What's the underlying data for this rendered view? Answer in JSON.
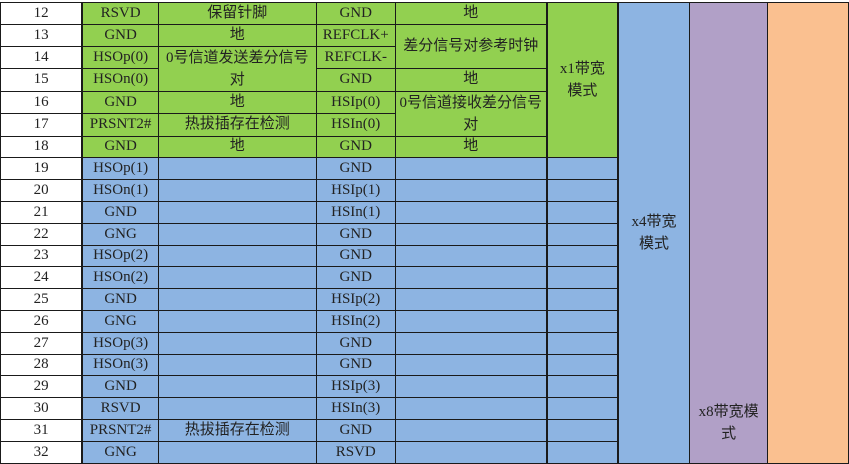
{
  "colors": {
    "green": "#92d050",
    "blue": "#8db4e2",
    "purple": "#b1a0c7",
    "orange": "#fac090"
  },
  "rows": [
    {
      "pin": "12",
      "signal_a": "RSVD",
      "desc_a": "保留针脚",
      "signal_b": "GND",
      "desc_b": "地"
    },
    {
      "pin": "13",
      "signal_a": "GND",
      "desc_a": "地",
      "signal_b": "REFCLK+",
      "desc_b": "差分信号对参考时钟"
    },
    {
      "pin": "14",
      "signal_a": "HSOp(0)",
      "desc_a": "0号信道发送差分信号对",
      "signal_b": "REFCLK-"
    },
    {
      "pin": "15",
      "signal_a": "HSOn(0)",
      "signal_b": "GND",
      "desc_b": "地"
    },
    {
      "pin": "16",
      "signal_a": "GND",
      "desc_a": "地",
      "signal_b": "HSIp(0)",
      "desc_b": "0号信道接收差分信号对"
    },
    {
      "pin": "17",
      "signal_a": "PRSNT2#",
      "desc_a": "热拔插存在检测",
      "signal_b": "HSIn(0)"
    },
    {
      "pin": "18",
      "signal_a": "GND",
      "desc_a": "地",
      "signal_b": "GND",
      "desc_b": "地"
    },
    {
      "pin": "19",
      "signal_a": "HSOp(1)",
      "desc_a": "",
      "signal_b": "GND",
      "desc_b": ""
    },
    {
      "pin": "20",
      "signal_a": "HSOn(1)",
      "desc_a": "",
      "signal_b": "HSIp(1)",
      "desc_b": ""
    },
    {
      "pin": "21",
      "signal_a": "GND",
      "desc_a": "",
      "signal_b": "HSIn(1)",
      "desc_b": ""
    },
    {
      "pin": "22",
      "signal_a": "GNG",
      "desc_a": "",
      "signal_b": "GND",
      "desc_b": ""
    },
    {
      "pin": "23",
      "signal_a": "HSOp(2)",
      "desc_a": "",
      "signal_b": "GND",
      "desc_b": ""
    },
    {
      "pin": "24",
      "signal_a": "HSOn(2)",
      "desc_a": "",
      "signal_b": "GND",
      "desc_b": ""
    },
    {
      "pin": "25",
      "signal_a": "GND",
      "desc_a": "",
      "signal_b": "HSIp(2)",
      "desc_b": ""
    },
    {
      "pin": "26",
      "signal_a": "GNG",
      "desc_a": "",
      "signal_b": "HSIn(2)",
      "desc_b": ""
    },
    {
      "pin": "27",
      "signal_a": "HSOp(3)",
      "desc_a": "",
      "signal_b": "GND",
      "desc_b": ""
    },
    {
      "pin": "28",
      "signal_a": "HSOn(3)",
      "desc_a": "",
      "signal_b": "GND",
      "desc_b": ""
    },
    {
      "pin": "29",
      "signal_a": "GND",
      "desc_a": "",
      "signal_b": "HSIp(3)",
      "desc_b": ""
    },
    {
      "pin": "30",
      "signal_a": "RSVD",
      "desc_a": "",
      "signal_b": "HSIn(3)",
      "desc_b": ""
    },
    {
      "pin": "31",
      "signal_a": "PRSNT2#",
      "desc_a": "热拔插存在检测",
      "signal_b": "GND",
      "desc_b": ""
    },
    {
      "pin": "32",
      "signal_a": "GNG",
      "desc_a": "",
      "signal_b": "RSVD",
      "desc_b": ""
    }
  ],
  "modes": {
    "x1": "x1带宽模式",
    "x4": "x4带宽模式",
    "x8": "x8带宽模式",
    "x16": ""
  }
}
